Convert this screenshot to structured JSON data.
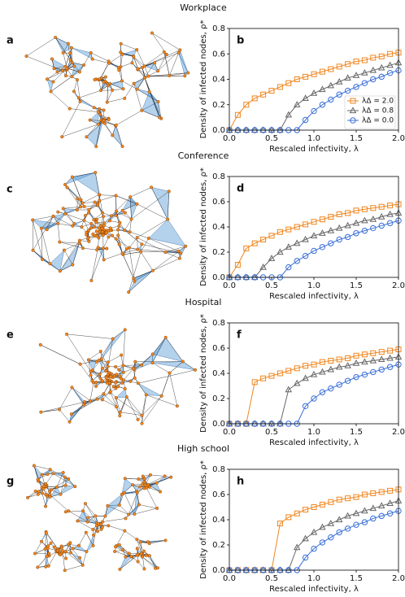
{
  "chart_data": [
    {
      "type": "line",
      "title": "Workplace",
      "network_label": "a",
      "panel_label": "b",
      "xlabel": "Rescaled infectivity, λ",
      "ylabel": "Density of infected nodes, ρ*",
      "x": [
        0,
        0.1,
        0.2,
        0.3,
        0.4,
        0.5,
        0.6,
        0.7,
        0.8,
        0.9,
        1.0,
        1.1,
        1.2,
        1.3,
        1.4,
        1.5,
        1.6,
        1.7,
        1.8,
        1.9,
        2.0
      ],
      "xlim": [
        0,
        2
      ],
      "ylim": [
        0,
        0.8
      ],
      "xticks": [
        {
          "value": 0,
          "label": "0.0"
        },
        {
          "value": 0.5,
          "label": "0.5"
        },
        {
          "value": 1,
          "label": "1.0"
        },
        {
          "value": 1.5,
          "label": "1.5"
        },
        {
          "value": 2,
          "label": "2.0"
        }
      ],
      "yticks": [
        {
          "value": 0,
          "label": "0.0"
        },
        {
          "value": 0.2,
          "label": "0.2"
        },
        {
          "value": 0.4,
          "label": "0.4"
        },
        {
          "value": 0.6,
          "label": "0.6"
        },
        {
          "value": 0.8,
          "label": "0.8"
        }
      ],
      "legend": "lower right",
      "series": [
        {
          "name": "λΔ = 2.0",
          "color": "#f0861f",
          "marker": "square",
          "values": [
            0,
            0.12,
            0.2,
            0.25,
            0.28,
            0.31,
            0.34,
            0.37,
            0.4,
            0.42,
            0.44,
            0.46,
            0.48,
            0.5,
            0.52,
            0.54,
            0.55,
            0.57,
            0.58,
            0.6,
            0.61
          ]
        },
        {
          "name": "λΔ = 0.8",
          "color": "#666666",
          "marker": "triangle",
          "values": [
            0,
            0,
            0,
            0,
            0,
            0,
            0,
            0.12,
            0.2,
            0.25,
            0.29,
            0.32,
            0.35,
            0.38,
            0.41,
            0.43,
            0.45,
            0.47,
            0.49,
            0.51,
            0.53
          ]
        },
        {
          "name": "λΔ = 0.0",
          "color": "#3a6fd8",
          "marker": "circle",
          "values": [
            0,
            0,
            0,
            0,
            0,
            0,
            0,
            0,
            0,
            0.08,
            0.15,
            0.2,
            0.24,
            0.28,
            0.31,
            0.34,
            0.37,
            0.4,
            0.42,
            0.45,
            0.47
          ]
        }
      ]
    },
    {
      "type": "line",
      "title": "Conference",
      "network_label": "c",
      "panel_label": "d",
      "xlabel": "Rescaled infectivity, λ",
      "ylabel": "Density of infected nodes, ρ*",
      "x": [
        0,
        0.1,
        0.2,
        0.3,
        0.4,
        0.5,
        0.6,
        0.7,
        0.8,
        0.9,
        1.0,
        1.1,
        1.2,
        1.3,
        1.4,
        1.5,
        1.6,
        1.7,
        1.8,
        1.9,
        2.0
      ],
      "xlim": [
        0,
        2
      ],
      "ylim": [
        0,
        0.8
      ],
      "xticks": [
        {
          "value": 0,
          "label": "0.0"
        },
        {
          "value": 0.5,
          "label": "0.5"
        },
        {
          "value": 1,
          "label": "1.0"
        },
        {
          "value": 1.5,
          "label": "1.5"
        },
        {
          "value": 2,
          "label": "2.0"
        }
      ],
      "yticks": [
        {
          "value": 0,
          "label": "0.0"
        },
        {
          "value": 0.2,
          "label": "0.2"
        },
        {
          "value": 0.4,
          "label": "0.4"
        },
        {
          "value": 0.6,
          "label": "0.6"
        },
        {
          "value": 0.8,
          "label": "0.8"
        }
      ],
      "series": [
        {
          "color": "#f0861f",
          "marker": "square",
          "values": [
            0,
            0.1,
            0.23,
            0.27,
            0.3,
            0.33,
            0.36,
            0.38,
            0.4,
            0.42,
            0.44,
            0.46,
            0.48,
            0.5,
            0.51,
            0.53,
            0.54,
            0.55,
            0.56,
            0.57,
            0.58
          ]
        },
        {
          "color": "#666666",
          "marker": "triangle",
          "values": [
            0,
            0,
            0,
            0,
            0.08,
            0.15,
            0.2,
            0.24,
            0.27,
            0.3,
            0.33,
            0.35,
            0.37,
            0.39,
            0.41,
            0.43,
            0.45,
            0.46,
            0.48,
            0.5,
            0.51
          ]
        },
        {
          "color": "#3a6fd8",
          "marker": "circle",
          "values": [
            0,
            0,
            0,
            0,
            0,
            0,
            0,
            0.08,
            0.13,
            0.17,
            0.21,
            0.24,
            0.27,
            0.3,
            0.32,
            0.35,
            0.37,
            0.39,
            0.41,
            0.43,
            0.45
          ]
        }
      ]
    },
    {
      "type": "line",
      "title": "Hospital",
      "network_label": "e",
      "panel_label": "f",
      "xlabel": "Rescaled infectivity, λ",
      "ylabel": "Density of infected nodes, ρ*",
      "x": [
        0,
        0.1,
        0.2,
        0.3,
        0.4,
        0.5,
        0.6,
        0.7,
        0.8,
        0.9,
        1.0,
        1.1,
        1.2,
        1.3,
        1.4,
        1.5,
        1.6,
        1.7,
        1.8,
        1.9,
        2.0
      ],
      "xlim": [
        0,
        2
      ],
      "ylim": [
        0,
        0.8
      ],
      "xticks": [
        {
          "value": 0,
          "label": "0.0"
        },
        {
          "value": 0.5,
          "label": "0.5"
        },
        {
          "value": 1,
          "label": "1.0"
        },
        {
          "value": 1.5,
          "label": "1.5"
        },
        {
          "value": 2,
          "label": "2.0"
        }
      ],
      "yticks": [
        {
          "value": 0,
          "label": "0.0"
        },
        {
          "value": 0.2,
          "label": "0.2"
        },
        {
          "value": 0.4,
          "label": "0.4"
        },
        {
          "value": 0.6,
          "label": "0.6"
        },
        {
          "value": 0.8,
          "label": "0.8"
        }
      ],
      "series": [
        {
          "color": "#f0861f",
          "marker": "square",
          "values": [
            0,
            0,
            0,
            0.33,
            0.36,
            0.38,
            0.4,
            0.42,
            0.44,
            0.46,
            0.47,
            0.49,
            0.5,
            0.51,
            0.52,
            0.54,
            0.55,
            0.56,
            0.57,
            0.58,
            0.59
          ]
        },
        {
          "color": "#666666",
          "marker": "triangle",
          "values": [
            0,
            0,
            0,
            0,
            0,
            0,
            0,
            0.27,
            0.32,
            0.36,
            0.39,
            0.41,
            0.43,
            0.45,
            0.46,
            0.48,
            0.49,
            0.5,
            0.51,
            0.52,
            0.53
          ]
        },
        {
          "color": "#3a6fd8",
          "marker": "circle",
          "values": [
            0,
            0,
            0,
            0,
            0,
            0,
            0,
            0,
            0,
            0.14,
            0.2,
            0.25,
            0.28,
            0.31,
            0.34,
            0.37,
            0.39,
            0.41,
            0.43,
            0.45,
            0.47
          ]
        }
      ]
    },
    {
      "type": "line",
      "title": "High school",
      "network_label": "g",
      "panel_label": "h",
      "xlabel": "Rescaled infectivity, λ",
      "ylabel": "Density of infected nodes, ρ*",
      "x": [
        0,
        0.1,
        0.2,
        0.3,
        0.4,
        0.5,
        0.6,
        0.7,
        0.8,
        0.9,
        1.0,
        1.1,
        1.2,
        1.3,
        1.4,
        1.5,
        1.6,
        1.7,
        1.8,
        1.9,
        2.0
      ],
      "xlim": [
        0,
        2
      ],
      "ylim": [
        0,
        0.8
      ],
      "xticks": [
        {
          "value": 0,
          "label": "0.0"
        },
        {
          "value": 0.5,
          "label": "0.5"
        },
        {
          "value": 1,
          "label": "1.0"
        },
        {
          "value": 1.5,
          "label": "1.5"
        },
        {
          "value": 2,
          "label": "2.0"
        }
      ],
      "yticks": [
        {
          "value": 0,
          "label": "0.0"
        },
        {
          "value": 0.2,
          "label": "0.2"
        },
        {
          "value": 0.4,
          "label": "0.4"
        },
        {
          "value": 0.6,
          "label": "0.6"
        },
        {
          "value": 0.8,
          "label": "0.8"
        }
      ],
      "series": [
        {
          "color": "#f0861f",
          "marker": "square",
          "values": [
            0,
            0,
            0,
            0,
            0,
            0,
            0.37,
            0.42,
            0.45,
            0.48,
            0.5,
            0.52,
            0.54,
            0.56,
            0.57,
            0.58,
            0.6,
            0.61,
            0.62,
            0.63,
            0.64
          ]
        },
        {
          "color": "#666666",
          "marker": "triangle",
          "values": [
            0,
            0,
            0,
            0,
            0,
            0,
            0,
            0,
            0.18,
            0.25,
            0.3,
            0.34,
            0.37,
            0.4,
            0.43,
            0.45,
            0.47,
            0.49,
            0.51,
            0.53,
            0.55
          ]
        },
        {
          "color": "#3a6fd8",
          "marker": "circle",
          "values": [
            0,
            0,
            0,
            0,
            0,
            0,
            0,
            0,
            0,
            0.1,
            0.17,
            0.22,
            0.26,
            0.3,
            0.33,
            0.36,
            0.38,
            0.41,
            0.43,
            0.45,
            0.47
          ]
        }
      ]
    }
  ]
}
